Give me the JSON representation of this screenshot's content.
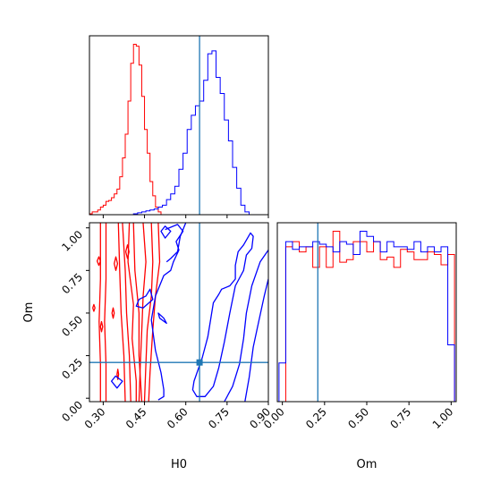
{
  "chart_data": {
    "type": "corner",
    "parameters": [
      "H0",
      "Om"
    ],
    "truths": {
      "H0": 0.65,
      "Om": 0.21
    },
    "colors": {
      "series_red": "#ff0000",
      "series_blue": "#0000ff",
      "truth_line": "#1f77b4",
      "frame": "#000000"
    },
    "panels": [
      {
        "id": "hist-H0",
        "type": "histogram",
        "parameter": "H0",
        "xlim": [
          0.25,
          0.9
        ],
        "series": [
          {
            "color": "#ff0000",
            "bin_start": 0.25,
            "bin_width": 0.01,
            "counts": [
              1,
              3,
              3,
              5,
              8,
              10,
              14,
              15,
              18,
              22,
              27,
              40,
              60,
              85,
              120,
              160,
              180,
              178,
              158,
              125,
              90,
              65,
              35,
              20,
              8,
              3,
              0
            ]
          },
          {
            "color": "#0000ff",
            "bin_start": 0.41,
            "bin_width": 0.015,
            "counts": [
              1,
              2,
              3,
              4,
              5,
              6,
              8,
              10,
              16,
              22,
              30,
              48,
              65,
              90,
              105,
              115,
              120,
              142,
              170,
              173,
              145,
              128,
              100,
              78,
              50,
              28,
              10,
              3
            ]
          }
        ]
      },
      {
        "id": "hist-Om",
        "type": "histogram",
        "parameter": "Om",
        "xlim": [
          -0.03,
          1.03
        ],
        "series": [
          {
            "color": "#ff0000",
            "bin_start": -0.02,
            "bin_width": 0.04,
            "counts": [
              0,
              60,
              62,
              58,
              60,
              52,
              60,
              52,
              66,
              54,
              55,
              62,
              62,
              58,
              62,
              55,
              56,
              52,
              59,
              58,
              55,
              55,
              58,
              57,
              53,
              57
            ]
          },
          {
            "color": "#0000ff",
            "bin_start": -0.02,
            "bin_width": 0.04,
            "counts": [
              15,
              62,
              59,
              60,
              60,
              62,
              61,
              60,
              58,
              62,
              61,
              57,
              66,
              64,
              62,
              58,
              62,
              60,
              60,
              59,
              62,
              58,
              60,
              58,
              60,
              22
            ]
          }
        ]
      },
      {
        "id": "contour-H0-Om",
        "type": "contour",
        "x": "H0",
        "y": "Om",
        "xlim": [
          0.25,
          0.9
        ],
        "ylim": [
          -0.02,
          1.03
        ],
        "series": [
          {
            "color": "#ff0000",
            "lines": [
              [
                [
                  0.29,
                  1.03
                ],
                [
                  0.29,
                  0.7
                ],
                [
                  0.285,
                  0.45
                ],
                [
                  0.29,
                  0.2
                ],
                [
                  0.29,
                  -0.02
                ]
              ],
              [
                [
                  0.31,
                  1.03
                ],
                [
                  0.31,
                  0.7
                ],
                [
                  0.305,
                  0.45
                ],
                [
                  0.31,
                  0.2
                ],
                [
                  0.31,
                  -0.02
                ]
              ],
              [
                [
                  0.355,
                  1.03
                ],
                [
                  0.36,
                  0.75
                ],
                [
                  0.365,
                  0.5
                ],
                [
                  0.375,
                  0.25
                ],
                [
                  0.38,
                  -0.02
                ]
              ],
              [
                [
                  0.37,
                  1.03
                ],
                [
                  0.38,
                  0.75
                ],
                [
                  0.385,
                  0.5
                ],
                [
                  0.395,
                  0.25
                ],
                [
                  0.4,
                  -0.02
                ]
              ],
              [
                [
                  0.395,
                  1.03
                ],
                [
                  0.39,
                  0.8
                ],
                [
                  0.41,
                  0.55
                ],
                [
                  0.405,
                  0.35
                ],
                [
                  0.42,
                  0.1
                ],
                [
                  0.42,
                  -0.02
                ]
              ],
              [
                [
                  0.41,
                  1.03
                ],
                [
                  0.415,
                  0.75
                ],
                [
                  0.43,
                  0.5
                ],
                [
                  0.43,
                  0.25
                ],
                [
                  0.44,
                  -0.02
                ]
              ],
              [
                [
                  0.445,
                  1.03
                ],
                [
                  0.455,
                  0.8
                ],
                [
                  0.445,
                  0.6
                ],
                [
                  0.44,
                  0.4
                ],
                [
                  0.435,
                  0.2
                ],
                [
                  0.43,
                  -0.02
                ]
              ],
              [
                [
                  0.475,
                  1.03
                ],
                [
                  0.48,
                  0.8
                ],
                [
                  0.475,
                  0.6
                ],
                [
                  0.46,
                  0.4
                ],
                [
                  0.455,
                  0.2
                ],
                [
                  0.45,
                  -0.02
                ]
              ],
              [
                [
                  0.5,
                  1.03
                ],
                [
                  0.505,
                  0.8
                ],
                [
                  0.49,
                  0.6
                ],
                [
                  0.48,
                  0.4
                ],
                [
                  0.47,
                  0.15
                ],
                [
                  0.465,
                  -0.02
                ]
              ]
            ],
            "islands": [
              [
                [
                  0.278,
                  0.805
                ],
                [
                  0.284,
                  0.83
                ],
                [
                  0.29,
                  0.805
                ],
                [
                  0.284,
                  0.78
                ],
                [
                  0.278,
                  0.805
                ]
              ],
              [
                [
                  0.262,
                  0.53
                ],
                [
                  0.266,
                  0.55
                ],
                [
                  0.27,
                  0.53
                ],
                [
                  0.266,
                  0.51
                ],
                [
                  0.262,
                  0.53
                ]
              ],
              [
                [
                  0.29,
                  0.42
                ],
                [
                  0.294,
                  0.45
                ],
                [
                  0.298,
                  0.42
                ],
                [
                  0.294,
                  0.39
                ],
                [
                  0.29,
                  0.42
                ]
              ],
              [
                [
                  0.34,
                  0.79
                ],
                [
                  0.346,
                  0.83
                ],
                [
                  0.352,
                  0.79
                ],
                [
                  0.346,
                  0.75
                ],
                [
                  0.34,
                  0.79
                ]
              ],
              [
                [
                  0.332,
                  0.5
                ],
                [
                  0.336,
                  0.53
                ],
                [
                  0.34,
                  0.5
                ],
                [
                  0.336,
                  0.47
                ],
                [
                  0.332,
                  0.5
                ]
              ],
              [
                [
                  0.382,
                  0.86
                ],
                [
                  0.388,
                  0.9
                ],
                [
                  0.394,
                  0.86
                ],
                [
                  0.388,
                  0.82
                ],
                [
                  0.382,
                  0.86
                ]
              ],
              [
                [
                  0.35,
                  0.14
                ],
                [
                  0.353,
                  0.17
                ],
                [
                  0.356,
                  0.14
                ],
                [
                  0.353,
                  0.11
                ],
                [
                  0.35,
                  0.14
                ]
              ]
            ]
          },
          {
            "color": "#0000ff",
            "lines": [
              [
                [
                  0.525,
                  0.99
                ],
                [
                  0.57,
                  1.02
                ],
                [
                  0.59,
                  0.98
                ],
                [
                  0.565,
                  0.92
                ],
                [
                  0.575,
                  0.87
                ],
                [
                  0.555,
                  0.8
                ],
                [
                  0.545,
                  0.75
                ],
                [
                  0.52,
                  0.72
                ],
                [
                  0.49,
                  0.6
                ],
                [
                  0.475,
                  0.46
                ],
                [
                  0.49,
                  0.28
                ],
                [
                  0.51,
                  0.15
                ],
                [
                  0.52,
                  0.05
                ],
                [
                  0.52,
                  0.01
                ],
                [
                  0.5,
                  -0.01
                ]
              ],
              [
                [
                  0.6,
                  1.03
                ],
                [
                  0.59,
                  0.99
                ],
                [
                  0.58,
                  0.95
                ],
                [
                  0.57,
                  0.86
                ],
                [
                  0.545,
                  0.82
                ],
                [
                  0.53,
                  0.8
                ]
              ],
              [
                [
                  0.9,
                  0.87
                ],
                [
                  0.87,
                  0.8
                ],
                [
                  0.84,
                  0.66
                ],
                [
                  0.82,
                  0.5
                ],
                [
                  0.81,
                  0.35
                ],
                [
                  0.795,
                  0.2
                ],
                [
                  0.77,
                  0.07
                ],
                [
                  0.74,
                  -0.02
                ]
              ],
              [
                [
                  0.9,
                  0.7
                ],
                [
                  0.885,
                  0.6
                ],
                [
                  0.865,
                  0.45
                ],
                [
                  0.845,
                  0.3
                ],
                [
                  0.83,
                  0.12
                ],
                [
                  0.815,
                  -0.02
                ]
              ]
            ],
            "islands": [
              [
                [
                  0.51,
                  0.98
                ],
                [
                  0.525,
                  1.01
                ],
                [
                  0.545,
                  0.98
                ],
                [
                  0.525,
                  0.94
                ],
                [
                  0.51,
                  0.98
                ]
              ],
              [
                [
                  0.47,
                  0.64
                ],
                [
                  0.455,
                  0.6
                ],
                [
                  0.43,
                  0.58
                ],
                [
                  0.42,
                  0.54
                ],
                [
                  0.445,
                  0.53
                ],
                [
                  0.48,
                  0.58
                ],
                [
                  0.47,
                  0.64
                ]
              ],
              [
                [
                  0.5,
                  0.5
                ],
                [
                  0.52,
                  0.47
                ],
                [
                  0.53,
                  0.44
                ],
                [
                  0.505,
                  0.47
                ],
                [
                  0.5,
                  0.5
                ]
              ],
              [
                [
                  0.33,
                  0.1
                ],
                [
                  0.345,
                  0.13
                ],
                [
                  0.37,
                  0.1
                ],
                [
                  0.35,
                  0.06
                ],
                [
                  0.33,
                  0.1
                ]
              ],
              [
                [
                  0.63,
                  0.1
                ],
                [
                  0.66,
                  0.24
                ],
                [
                  0.68,
                  0.36
                ],
                [
                  0.69,
                  0.46
                ],
                [
                  0.7,
                  0.56
                ],
                [
                  0.72,
                  0.61
                ],
                [
                  0.73,
                  0.64
                ],
                [
                  0.76,
                  0.66
                ],
                [
                  0.78,
                  0.7
                ],
                [
                  0.78,
                  0.78
                ],
                [
                  0.79,
                  0.86
                ],
                [
                  0.81,
                  0.9
                ],
                [
                  0.835,
                  0.97
                ],
                [
                  0.845,
                  0.95
                ],
                [
                  0.84,
                  0.88
                ],
                [
                  0.82,
                  0.84
                ],
                [
                  0.81,
                  0.75
                ],
                [
                  0.78,
                  0.66
                ],
                [
                  0.76,
                  0.5
                ],
                [
                  0.74,
                  0.33
                ],
                [
                  0.72,
                  0.18
                ],
                [
                  0.7,
                  0.07
                ],
                [
                  0.67,
                  0.01
                ],
                [
                  0.64,
                  0.01
                ],
                [
                  0.625,
                  0.05
                ],
                [
                  0.63,
                  0.1
                ]
              ]
            ]
          }
        ]
      }
    ],
    "axes": {
      "H0": {
        "label": "H0",
        "ticks": [
          0.3,
          0.45,
          0.6,
          0.75,
          0.9
        ],
        "tick_labels": [
          "0.30",
          "0.45",
          "0.60",
          "0.75",
          "0.90"
        ]
      },
      "Om": {
        "label": "Om",
        "ticks": [
          0.0,
          0.25,
          0.5,
          0.75,
          1.0
        ],
        "tick_labels": [
          "0.00",
          "0.25",
          "0.50",
          "0.75",
          "1.00"
        ]
      }
    }
  }
}
